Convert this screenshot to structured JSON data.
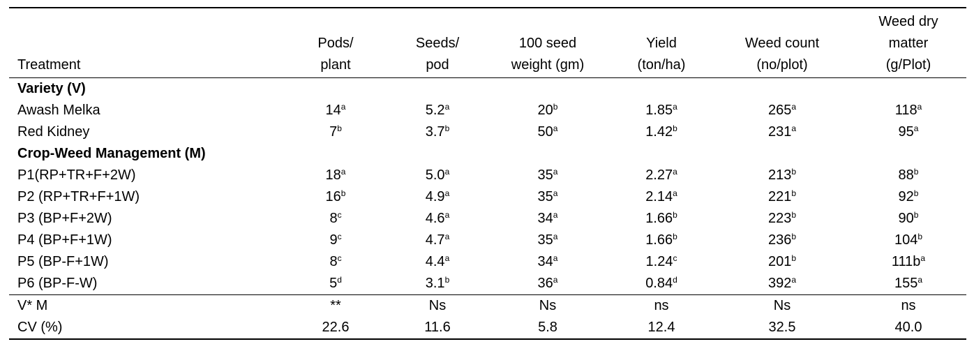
{
  "table": {
    "headers": [
      {
        "line1": "",
        "line2": "",
        "line3": "Treatment"
      },
      {
        "line1": "",
        "line2": "Pods/",
        "line3": "plant"
      },
      {
        "line1": "",
        "line2": "Seeds/",
        "line3": "pod"
      },
      {
        "line1": "",
        "line2": "100 seed",
        "line3": "weight (gm)"
      },
      {
        "line1": "",
        "line2": "Yield",
        "line3": "(ton/ha)"
      },
      {
        "line1": "",
        "line2": "Weed count",
        "line3": "(no/plot)"
      },
      {
        "line1": "Weed dry",
        "line2": "matter",
        "line3": "(g/Plot)"
      }
    ],
    "sections": [
      {
        "title": "Variety (V)",
        "rows": [
          {
            "label": "Awash Melka",
            "cells": [
              [
                "14",
                "a"
              ],
              [
                "5.2",
                "a"
              ],
              [
                "20",
                "b"
              ],
              [
                "1.85",
                "a"
              ],
              [
                "265",
                "a"
              ],
              [
                "118",
                "a"
              ]
            ]
          },
          {
            "label": "Red Kidney",
            "cells": [
              [
                "7",
                "b"
              ],
              [
                "3.7",
                "b"
              ],
              [
                "50",
                "a"
              ],
              [
                "1.42",
                "b"
              ],
              [
                "231",
                "a"
              ],
              [
                "95",
                "a"
              ]
            ]
          }
        ]
      },
      {
        "title": "Crop-Weed Management (M)",
        "rows": [
          {
            "label": "P1(RP+TR+F+2W)",
            "cells": [
              [
                "18",
                "a"
              ],
              [
                "5.0",
                "a"
              ],
              [
                "35",
                "a"
              ],
              [
                "2.27",
                "a"
              ],
              [
                "213",
                "b"
              ],
              [
                "88",
                "b"
              ]
            ]
          },
          {
            "label": "P2 (RP+TR+F+1W)",
            "cells": [
              [
                "16",
                "b"
              ],
              [
                "4.9",
                "a"
              ],
              [
                "35",
                "a"
              ],
              [
                "2.14",
                "a"
              ],
              [
                "221",
                "b"
              ],
              [
                "92",
                "b"
              ]
            ]
          },
          {
            "label": "P3 (BP+F+2W)",
            "cells": [
              [
                "8",
                "c"
              ],
              [
                "4.6",
                "a"
              ],
              [
                "34",
                "a"
              ],
              [
                "1.66",
                "b"
              ],
              [
                "223",
                "b"
              ],
              [
                "90",
                "b"
              ]
            ]
          },
          {
            "label": "P4 (BP+F+1W)",
            "cells": [
              [
                "9",
                "c"
              ],
              [
                "4.7",
                "a"
              ],
              [
                "35",
                "a"
              ],
              [
                "1.66",
                "b"
              ],
              [
                "236",
                "b"
              ],
              [
                "104",
                "b"
              ]
            ]
          },
          {
            "label": "P5 (BP-F+1W)",
            "cells": [
              [
                "8",
                "c"
              ],
              [
                "4.4",
                "a"
              ],
              [
                "34",
                "a"
              ],
              [
                "1.24",
                "c"
              ],
              [
                "201",
                "b"
              ],
              [
                "111b",
                "a"
              ]
            ]
          },
          {
            "label": "P6 (BP-F-W)",
            "cells": [
              [
                "5",
                "d"
              ],
              [
                "3.1",
                "b"
              ],
              [
                "36",
                "a"
              ],
              [
                "0.84",
                "d"
              ],
              [
                "392",
                "a"
              ],
              [
                "155",
                "a"
              ]
            ]
          }
        ]
      }
    ],
    "footer": [
      {
        "label": "V* M",
        "cells": [
          "**",
          "Ns",
          "Ns",
          "ns",
          "Ns",
          "ns"
        ]
      },
      {
        "label": "CV (%)",
        "cells": [
          "22.6",
          "11.6",
          "5.8",
          "12.4",
          "32.5",
          "40.0"
        ]
      }
    ]
  }
}
